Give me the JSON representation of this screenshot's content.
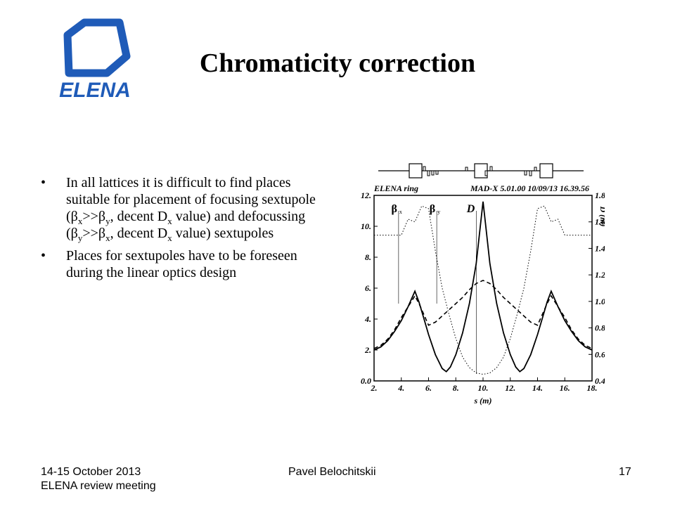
{
  "slide": {
    "title": "Chromaticity correction",
    "logo_text": "ELENA",
    "logo_color": "#1f5bb8"
  },
  "bullets": [
    {
      "id": "b1",
      "parts": [
        {
          "t": "In all lattices it is difficult to find places suitable for placement of focusing sextupole ("
        },
        {
          "t": "β"
        },
        {
          "sub": "x"
        },
        {
          "t": ">>β"
        },
        {
          "sub": "y"
        },
        {
          "t": ", decent D"
        },
        {
          "sub": "x"
        },
        {
          "t": " value) and defocussing ("
        },
        {
          "t": "β"
        },
        {
          "sub": "y"
        },
        {
          "t": ">>β"
        },
        {
          "sub": "x"
        },
        {
          "t": ", decent D"
        },
        {
          "sub": "x"
        },
        {
          "t": " value) sextupoles"
        }
      ]
    },
    {
      "id": "b2",
      "parts": [
        {
          "t": "Places for sextupoles have to be foreseen during the linear optics design"
        }
      ]
    }
  ],
  "footer": {
    "date": "14-15 October 2013",
    "event": "ELENA  review meeting",
    "author": "Pavel Belochitskii",
    "page": "17"
  },
  "chart_data": {
    "type": "line",
    "header_left": "ELENA ring",
    "header_right": "MAD-X 5.01.00  10/09/13 16.39.56",
    "xlabel": "s (m)",
    "ylabel_right": "D (m)",
    "xlim": [
      2.0,
      18.0
    ],
    "ylim": [
      0.0,
      12.0
    ],
    "ylim_right": [
      0.4,
      1.8
    ],
    "xticks": [
      "2.",
      "4.",
      "6.",
      "8.",
      "10.",
      "12.",
      "14.",
      "16.",
      "18."
    ],
    "yticks": [
      "0.0",
      "2.",
      "4.",
      "6.",
      "8.",
      "10.",
      "12."
    ],
    "yticks_right": [
      "0.4",
      "0.6",
      "0.8",
      "1.0",
      "1.2",
      "1.4",
      "1.6",
      "1.8"
    ],
    "legend": [
      {
        "symbol": "β",
        "sub": "x",
        "style": "solid",
        "x": 3.8
      },
      {
        "symbol": "β",
        "sub": "y",
        "style": "dashed",
        "x": 6.6
      },
      {
        "symbol": "D",
        "sub": "",
        "style": "dotted",
        "x": 9.5
      }
    ],
    "series": [
      {
        "name": "βx",
        "style": "solid",
        "axis": "left",
        "x": [
          2.0,
          2.5,
          3.0,
          3.5,
          4.0,
          4.5,
          5.0,
          5.3,
          5.6,
          6.0,
          6.5,
          7.0,
          7.3,
          7.6,
          8.0,
          8.5,
          9.0,
          9.5,
          9.8,
          10.0,
          10.2,
          10.5,
          11.0,
          11.5,
          12.0,
          12.4,
          12.7,
          13.0,
          13.5,
          14.0,
          14.4,
          14.7,
          15.0,
          15.5,
          16.0,
          16.5,
          17.0,
          17.5,
          18.0
        ],
        "y": [
          2.0,
          2.2,
          2.6,
          3.2,
          3.9,
          4.8,
          5.8,
          5.1,
          4.2,
          3.0,
          1.7,
          0.8,
          0.6,
          0.9,
          1.7,
          3.1,
          5.0,
          7.6,
          10.0,
          11.6,
          10.0,
          7.6,
          5.0,
          3.1,
          1.7,
          0.9,
          0.6,
          0.8,
          1.7,
          3.0,
          4.2,
          5.1,
          5.8,
          4.8,
          3.9,
          3.2,
          2.6,
          2.2,
          2.0
        ]
      },
      {
        "name": "βy",
        "style": "dashed",
        "axis": "left",
        "x": [
          2.0,
          2.5,
          3.0,
          3.5,
          4.0,
          4.5,
          5.0,
          5.3,
          5.6,
          6.0,
          6.5,
          7.0,
          7.5,
          8.0,
          8.5,
          9.0,
          9.5,
          10.0,
          10.5,
          11.0,
          11.5,
          12.0,
          12.5,
          13.0,
          13.5,
          14.0,
          14.4,
          14.7,
          15.0,
          15.5,
          16.0,
          16.5,
          17.0,
          17.5,
          18.0
        ],
        "y": [
          2.1,
          2.3,
          2.7,
          3.3,
          4.1,
          4.8,
          5.5,
          5.0,
          4.4,
          3.6,
          3.8,
          4.2,
          4.6,
          5.0,
          5.4,
          5.9,
          6.3,
          6.5,
          6.3,
          5.9,
          5.4,
          5.0,
          4.6,
          4.2,
          3.8,
          3.6,
          4.4,
          5.0,
          5.5,
          4.8,
          4.1,
          3.3,
          2.7,
          2.3,
          2.1
        ]
      },
      {
        "name": "D",
        "style": "dotted",
        "axis": "right",
        "x": [
          2.0,
          3.0,
          4.0,
          4.5,
          5.0,
          5.5,
          6.0,
          6.5,
          7.0,
          7.5,
          8.0,
          8.5,
          9.0,
          9.5,
          10.0,
          10.5,
          11.0,
          11.5,
          12.0,
          12.5,
          13.0,
          13.5,
          14.0,
          14.5,
          15.0,
          15.5,
          16.0,
          17.0,
          18.0
        ],
        "y": [
          1.5,
          1.5,
          1.5,
          1.62,
          1.6,
          1.72,
          1.7,
          1.38,
          1.1,
          0.9,
          0.72,
          0.58,
          0.5,
          0.46,
          0.45,
          0.46,
          0.5,
          0.58,
          0.72,
          0.9,
          1.1,
          1.38,
          1.7,
          1.72,
          1.6,
          1.62,
          1.5,
          1.5,
          1.5
        ]
      }
    ]
  }
}
